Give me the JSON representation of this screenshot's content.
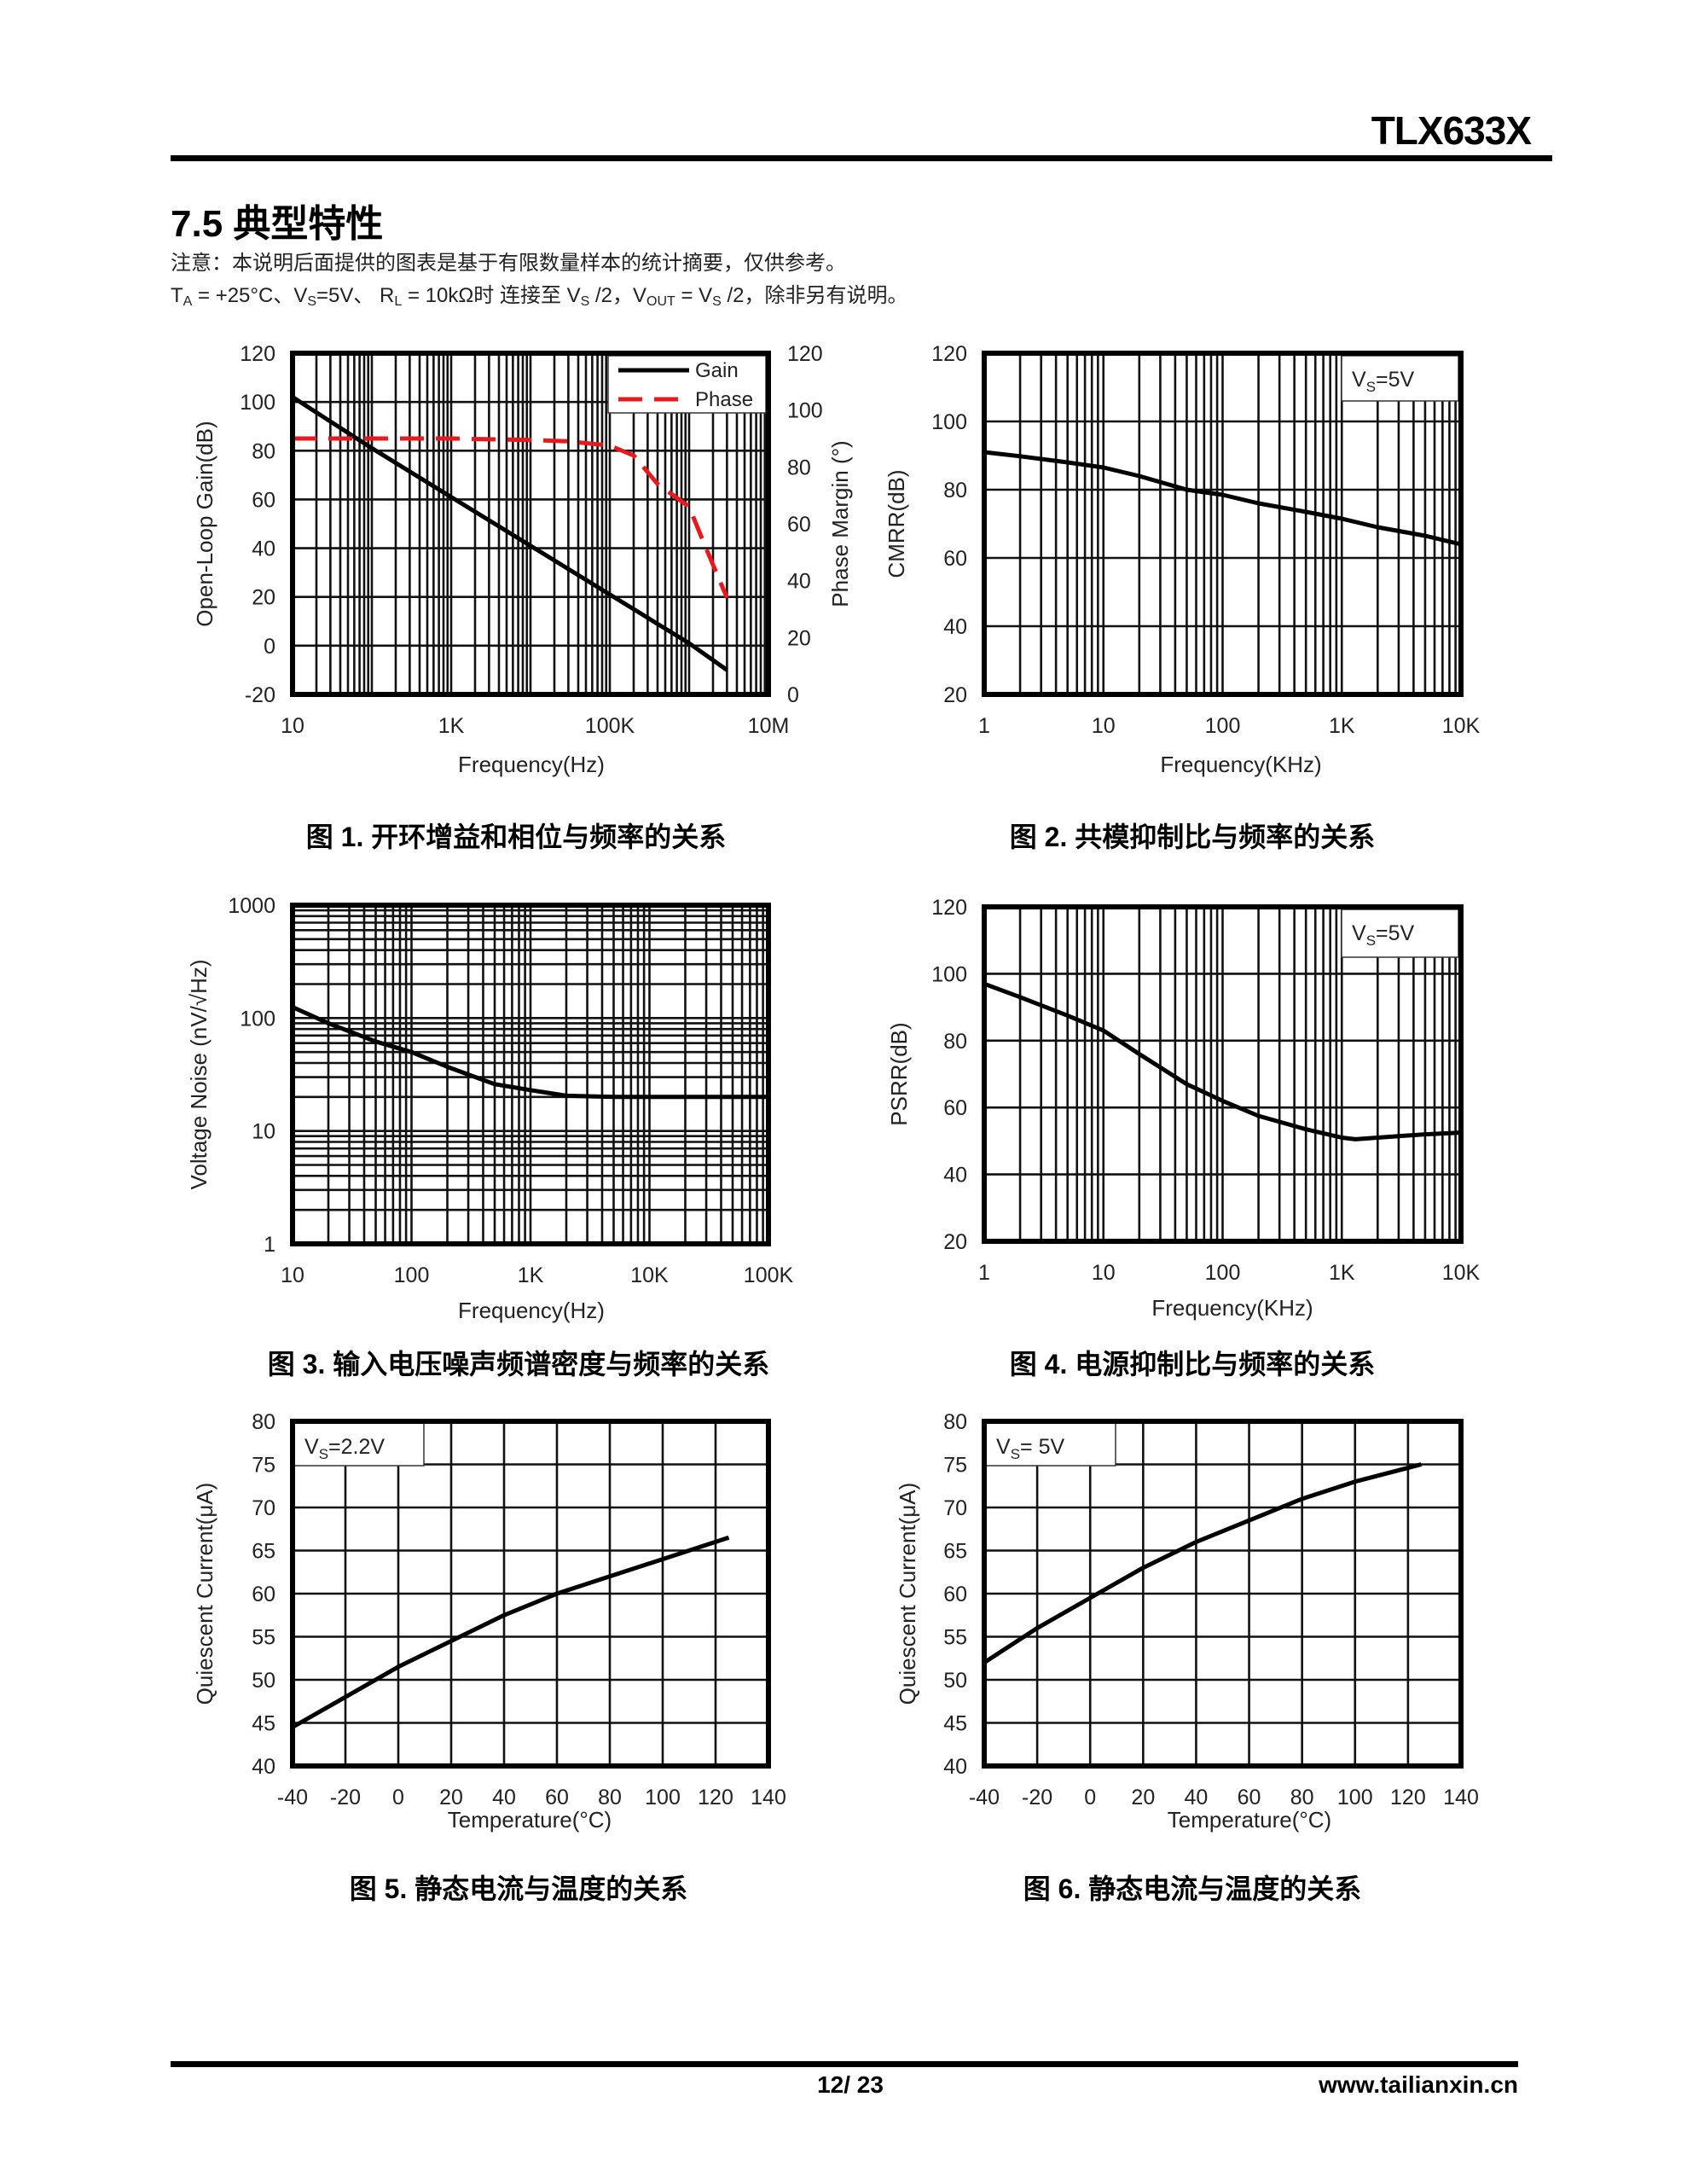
{
  "header": {
    "doc_id": "TLX633X"
  },
  "section": {
    "title": "7.5 典型特性",
    "note": "注意：本说明后面提供的图表是基于有限数量样本的统计摘要，仅供参考。",
    "conditions": [
      "T",
      "A",
      " = +25°C、V",
      "S",
      "=5V、 R",
      "L",
      " = 10kΩ时 连接至 V",
      "S",
      " /2，V",
      "OUT",
      " = V",
      "S",
      " /2，除非另有说明。"
    ]
  },
  "captions": [
    "图 1. 开环增益和相位与频率的关系",
    "图 2. 共模抑制比与频率的关系",
    "图 3. 输入电压噪声频谱密度与频率的关系",
    "图 4. 电源抑制比与频率的关系",
    "图 5. 静态电流与温度的关系",
    "图 6. 静态电流与温度的关系"
  ],
  "footer": {
    "page": "12/ 23",
    "url": "www.tailianxin.cn"
  },
  "chart_data": [
    {
      "type": "line",
      "title": "图 1. 开环增益和相位与频率的关系",
      "xlabel": "Frequency(Hz)",
      "ylabel": "Open-Loop Gain(dB)",
      "y2label": "Phase Margin (°)",
      "x_scale": "log",
      "xlim": [
        10,
        10000000
      ],
      "ylim": [
        -20,
        120
      ],
      "y2lim": [
        0,
        120
      ],
      "x_ticks": [
        {
          "value": 10,
          "label": "10"
        },
        {
          "value": 1000,
          "label": "1K"
        },
        {
          "value": 100000,
          "label": "100K"
        },
        {
          "value": 10000000,
          "label": "10M"
        }
      ],
      "y_ticks": [
        {
          "value": -20,
          "label": "-20"
        },
        {
          "value": 0,
          "label": "0"
        },
        {
          "value": 20,
          "label": "20"
        },
        {
          "value": 40,
          "label": "40"
        },
        {
          "value": 60,
          "label": "60"
        },
        {
          "value": 80,
          "label": "80"
        },
        {
          "value": 100,
          "label": "100"
        },
        {
          "value": 120,
          "label": "120"
        }
      ],
      "y2_ticks": [
        {
          "value": 0,
          "label": "0"
        },
        {
          "value": 20,
          "label": "20"
        },
        {
          "value": 40,
          "label": "40"
        },
        {
          "value": 60,
          "label": "60"
        },
        {
          "value": 80,
          "label": "80"
        },
        {
          "value": 100,
          "label": "100"
        },
        {
          "value": 120,
          "label": "120"
        }
      ],
      "grid": true,
      "legend": "top-right",
      "series": [
        {
          "name": "Gain",
          "axis": "y",
          "color": "#000000",
          "dash": false,
          "x": [
            10,
            100,
            1000,
            10000,
            100000,
            1000000,
            3000000
          ],
          "y": [
            102,
            81,
            61,
            41,
            21,
            1,
            -10
          ]
        },
        {
          "name": "Phase",
          "axis": "y2",
          "color": "#e8191c",
          "dash": true,
          "x": [
            10,
            1000,
            10000,
            30000,
            100000,
            200000,
            400000,
            1000000,
            1600000,
            3000000
          ],
          "y": [
            90,
            90,
            89.5,
            89,
            87.5,
            84,
            74,
            66,
            52,
            34
          ]
        }
      ]
    },
    {
      "type": "line",
      "title": "图 2. 共模抑制比与频率的关系",
      "xlabel": "Frequency(KHz)",
      "ylabel": "CMRR(dB)",
      "x_scale": "log",
      "xlim": [
        1,
        10000
      ],
      "ylim": [
        20,
        120
      ],
      "x_ticks": [
        {
          "value": 1,
          "label": "1"
        },
        {
          "value": 10,
          "label": "10"
        },
        {
          "value": 100,
          "label": "100"
        },
        {
          "value": 1000,
          "label": "1K"
        },
        {
          "value": 10000,
          "label": "10K"
        }
      ],
      "y_ticks": [
        {
          "value": 20,
          "label": "20"
        },
        {
          "value": 40,
          "label": "40"
        },
        {
          "value": 60,
          "label": "60"
        },
        {
          "value": 80,
          "label": "80"
        },
        {
          "value": 100,
          "label": "100"
        },
        {
          "value": 120,
          "label": "120"
        }
      ],
      "grid": true,
      "annotation": {
        "main": "V",
        "sub": "S",
        "rest": "=5V",
        "placement": "top-right"
      },
      "series": [
        {
          "name": "CMRR",
          "axis": "y",
          "color": "#000000",
          "dash": false,
          "x": [
            1,
            2,
            5,
            10,
            20,
            50,
            100,
            200,
            500,
            1000,
            2000,
            5000,
            10000
          ],
          "y": [
            91,
            89.8,
            88,
            86.5,
            84,
            80,
            78.5,
            76,
            73.5,
            71.5,
            69,
            66.5,
            64
          ]
        }
      ]
    },
    {
      "type": "line",
      "title": "图 3. 输入电压噪声频谱密度与频率的关系",
      "xlabel": "Frequency(Hz)",
      "ylabel": "Voltage Noise (nV/√Hz)",
      "x_scale": "log",
      "y_scale": "log",
      "xlim": [
        10,
        100000
      ],
      "ylim": [
        1,
        1000
      ],
      "x_ticks": [
        {
          "value": 10,
          "label": "10"
        },
        {
          "value": 100,
          "label": "100"
        },
        {
          "value": 1000,
          "label": "1K"
        },
        {
          "value": 10000,
          "label": "10K"
        },
        {
          "value": 100000,
          "label": "100K"
        }
      ],
      "y_ticks": [
        {
          "value": 1,
          "label": "1"
        },
        {
          "value": 10,
          "label": "10"
        },
        {
          "value": 100,
          "label": "100"
        },
        {
          "value": 1000,
          "label": "1000"
        }
      ],
      "grid": true,
      "series": [
        {
          "name": "Voltage Noise",
          "axis": "y",
          "color": "#000000",
          "dash": false,
          "x": [
            10,
            20,
            50,
            100,
            200,
            500,
            1000,
            2000,
            5000,
            10000,
            100000
          ],
          "y": [
            125,
            90,
            62,
            50,
            37,
            26,
            23,
            20.5,
            20,
            20,
            20
          ]
        }
      ]
    },
    {
      "type": "line",
      "title": "图 4. 电源抑制比与频率的关系",
      "xlabel": "Frequency(KHz)",
      "ylabel": "PSRR(dB)",
      "x_scale": "log",
      "xlim": [
        1,
        10000
      ],
      "ylim": [
        20,
        120
      ],
      "x_ticks": [
        {
          "value": 1,
          "label": "1"
        },
        {
          "value": 10,
          "label": "10"
        },
        {
          "value": 100,
          "label": "100"
        },
        {
          "value": 1000,
          "label": "1K"
        },
        {
          "value": 10000,
          "label": "10K"
        }
      ],
      "y_ticks": [
        {
          "value": 20,
          "label": "20"
        },
        {
          "value": 40,
          "label": "40"
        },
        {
          "value": 60,
          "label": "60"
        },
        {
          "value": 80,
          "label": "80"
        },
        {
          "value": 100,
          "label": "100"
        },
        {
          "value": 120,
          "label": "120"
        }
      ],
      "grid": true,
      "annotation": {
        "main": "V",
        "sub": "S",
        "rest": "=5V",
        "placement": "top-right"
      },
      "series": [
        {
          "name": "PSRR",
          "axis": "y",
          "color": "#000000",
          "dash": false,
          "x": [
            1,
            2,
            5,
            10,
            20,
            50,
            100,
            200,
            500,
            1000,
            1300,
            2000,
            5000,
            10000
          ],
          "y": [
            97,
            93,
            87.5,
            83,
            76,
            67,
            62,
            57.5,
            53.5,
            51,
            50.5,
            51,
            52,
            52.5
          ]
        }
      ]
    },
    {
      "type": "line",
      "title": "图 5. 静态电流与温度的关系",
      "xlabel": "Temperature(°C)",
      "ylabel": "Quiescent Current(μA)",
      "xlim": [
        -40,
        140
      ],
      "ylim": [
        40,
        80
      ],
      "x_ticks": [
        {
          "value": -40,
          "label": "-40"
        },
        {
          "value": -20,
          "label": "-20"
        },
        {
          "value": 0,
          "label": "0"
        },
        {
          "value": 20,
          "label": "20"
        },
        {
          "value": 40,
          "label": "40"
        },
        {
          "value": 60,
          "label": "60"
        },
        {
          "value": 80,
          "label": "80"
        },
        {
          "value": 100,
          "label": "100"
        },
        {
          "value": 120,
          "label": "120"
        },
        {
          "value": 140,
          "label": "140"
        }
      ],
      "y_ticks": [
        {
          "value": 40,
          "label": "40"
        },
        {
          "value": 45,
          "label": "45"
        },
        {
          "value": 50,
          "label": "50"
        },
        {
          "value": 55,
          "label": "55"
        },
        {
          "value": 60,
          "label": "60"
        },
        {
          "value": 65,
          "label": "65"
        },
        {
          "value": 70,
          "label": "70"
        },
        {
          "value": 75,
          "label": "75"
        },
        {
          "value": 80,
          "label": "80"
        }
      ],
      "grid": true,
      "annotation": {
        "main": "V",
        "sub": "S",
        "rest": "=2.2V",
        "placement": "top-left"
      },
      "series": [
        {
          "name": "Quiescent Current",
          "axis": "y",
          "color": "#000000",
          "dash": false,
          "x": [
            -40,
            -20,
            0,
            20,
            40,
            60,
            80,
            100,
            125
          ],
          "y": [
            44.5,
            48,
            51.5,
            54.5,
            57.5,
            60,
            62,
            64,
            66.5
          ]
        }
      ]
    },
    {
      "type": "line",
      "title": "图 6. 静态电流与温度的关系",
      "xlabel": "Temperature(°C)",
      "ylabel": "Quiescent Current(μA)",
      "xlim": [
        -40,
        140
      ],
      "ylim": [
        40,
        80
      ],
      "x_ticks": [
        {
          "value": -40,
          "label": "-40"
        },
        {
          "value": -20,
          "label": "-20"
        },
        {
          "value": 0,
          "label": "0"
        },
        {
          "value": 20,
          "label": "20"
        },
        {
          "value": 40,
          "label": "40"
        },
        {
          "value": 60,
          "label": "60"
        },
        {
          "value": 80,
          "label": "80"
        },
        {
          "value": 100,
          "label": "100"
        },
        {
          "value": 120,
          "label": "120"
        },
        {
          "value": 140,
          "label": "140"
        }
      ],
      "y_ticks": [
        {
          "value": 40,
          "label": "40"
        },
        {
          "value": 45,
          "label": "45"
        },
        {
          "value": 50,
          "label": "50"
        },
        {
          "value": 55,
          "label": "55"
        },
        {
          "value": 60,
          "label": "60"
        },
        {
          "value": 65,
          "label": "65"
        },
        {
          "value": 70,
          "label": "70"
        },
        {
          "value": 75,
          "label": "75"
        },
        {
          "value": 80,
          "label": "80"
        }
      ],
      "grid": true,
      "annotation": {
        "main": "V",
        "sub": "S",
        "rest": "= 5V",
        "placement": "top-left"
      },
      "series": [
        {
          "name": "Quiescent Current",
          "axis": "y",
          "color": "#000000",
          "dash": false,
          "x": [
            -40,
            -20,
            0,
            20,
            40,
            60,
            80,
            100,
            125
          ],
          "y": [
            52,
            56,
            59.5,
            63,
            66,
            68.5,
            71,
            73,
            75
          ]
        }
      ]
    }
  ]
}
